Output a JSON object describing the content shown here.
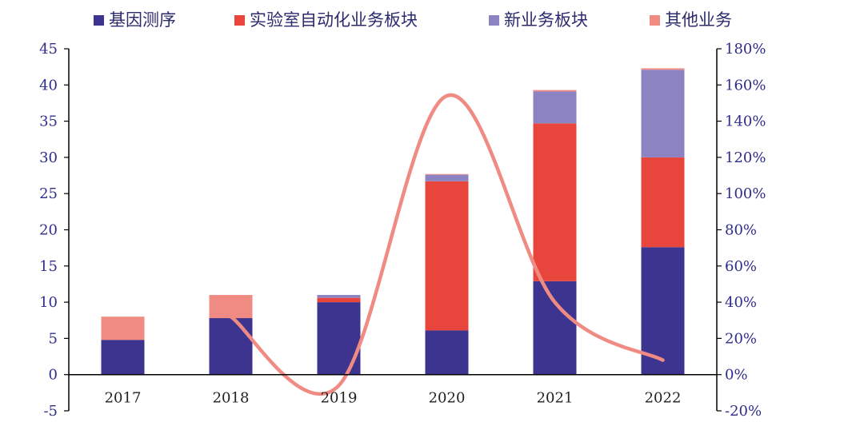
{
  "chart_data": {
    "type": "bar",
    "stacked": true,
    "categories": [
      "2017",
      "2018",
      "2019",
      "2020",
      "2021",
      "2022"
    ],
    "series": [
      {
        "name": "基因测序",
        "color": "#3d3490",
        "values": [
          4.8,
          7.8,
          10.0,
          6.1,
          12.9,
          17.6
        ]
      },
      {
        "name": "实验室自动化业务板块",
        "color": "#e8463c",
        "values": [
          0,
          0,
          0.6,
          20.6,
          21.8,
          12.4
        ]
      },
      {
        "name": "新业务板块",
        "color": "#8c83c3",
        "values": [
          0,
          0,
          0.4,
          0.9,
          4.4,
          12.1
        ]
      },
      {
        "name": "其他业务",
        "color": "#f08b84",
        "values": [
          3.2,
          3.2,
          0,
          0.1,
          0.2,
          0.2
        ]
      }
    ],
    "line": {
      "color": "#f08b84",
      "axis": "right",
      "values": [
        null,
        32,
        -6,
        154,
        40,
        8
      ]
    },
    "ylim": [
      -5,
      45
    ],
    "y_ticks": [
      "45",
      "40",
      "35",
      "30",
      "25",
      "20",
      "15",
      "10",
      "5",
      "0",
      "-5"
    ],
    "y2lim": [
      -20,
      180
    ],
    "y2_ticks": [
      "180%",
      "160%",
      "140%",
      "120%",
      "100%",
      "80%",
      "60%",
      "40%",
      "20%",
      "0%",
      "-20%"
    ],
    "legend_position": "top",
    "grid": false
  }
}
